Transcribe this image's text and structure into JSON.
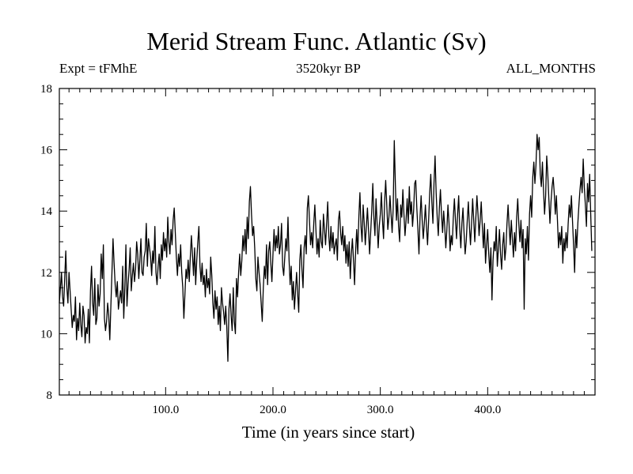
{
  "chart_data": {
    "type": "line",
    "title": "Merid Stream Func. Atlantic (Sv)",
    "subtitle_left": "Expt = tFMhE",
    "subtitle_center": "3520kyr BP",
    "subtitle_right": "ALL_MONTHS",
    "xlabel": "Time (in years since start)",
    "ylabel": "",
    "xlim": [
      1,
      500
    ],
    "ylim": [
      8,
      18
    ],
    "xticks": [
      100,
      200,
      300,
      400
    ],
    "xtick_labels": [
      "100.0",
      "200.0",
      "300.0",
      "400.0"
    ],
    "yticks": [
      8,
      10,
      12,
      14,
      16,
      18
    ],
    "ytick_labels": [
      "8",
      "10",
      "12",
      "14",
      "16",
      "18"
    ],
    "grid": false,
    "series": [
      {
        "name": "Meridional stream function",
        "x_start": 1,
        "x_step": 1,
        "values": [
          11.0,
          11.5,
          12.0,
          11.2,
          10.9,
          11.8,
          12.7,
          11.5,
          11.0,
          12.0,
          11.4,
          10.8,
          10.2,
          10.6,
          10.4,
          11.2,
          9.8,
          10.5,
          10.1,
          11.0,
          10.3,
          9.9,
          10.9,
          10.6,
          9.7,
          10.2,
          10.0,
          10.8,
          9.7,
          11.4,
          12.2,
          11.0,
          10.6,
          11.8,
          10.3,
          10.5,
          11.6,
          10.9,
          11.3,
          12.6,
          11.8,
          12.9,
          10.5,
          10.1,
          10.4,
          11.0,
          10.6,
          9.8,
          10.9,
          12.0,
          13.1,
          12.3,
          11.6,
          11.2,
          11.7,
          10.8,
          11.1,
          11.4,
          11.0,
          12.2,
          10.5,
          11.5,
          12.9,
          10.9,
          11.6,
          12.1,
          12.8,
          11.4,
          11.9,
          12.3,
          11.7,
          12.1,
          13.0,
          12.6,
          11.8,
          12.4,
          13.1,
          12.0,
          11.9,
          12.5,
          12.7,
          13.6,
          12.2,
          13.1,
          12.8,
          12.5,
          11.9,
          12.7,
          12.3,
          13.5,
          12.0,
          11.6,
          12.2,
          12.6,
          11.8,
          12.9,
          12.4,
          13.3,
          12.7,
          13.1,
          12.5,
          13.8,
          13.0,
          12.6,
          13.4,
          12.9,
          13.7,
          14.1,
          13.3,
          12.5,
          11.9,
          12.6,
          12.2,
          12.9,
          12.0,
          11.5,
          10.5,
          11.3,
          12.1,
          11.8,
          12.4,
          11.7,
          12.5,
          13.2,
          12.6,
          11.9,
          12.8,
          11.6,
          12.4,
          13.0,
          13.5,
          12.2,
          11.7,
          12.3,
          11.6,
          11.9,
          11.2,
          12.1,
          11.5,
          11.8,
          11.3,
          12.5,
          11.9,
          11.0,
          10.5,
          11.4,
          10.8,
          11.2,
          10.3,
          10.9,
          10.1,
          11.5,
          11.0,
          10.7,
          10.3,
          10.9,
          10.2,
          9.1,
          10.8,
          11.3,
          10.6,
          10.1,
          11.5,
          10.4,
          10.0,
          11.8,
          11.2,
          12.0,
          12.6,
          11.9,
          12.4,
          13.2,
          12.7,
          13.4,
          12.6,
          13.8,
          13.1,
          14.3,
          14.8,
          13.9,
          13.2,
          13.5,
          12.8,
          11.8,
          11.4,
          12.5,
          12.0,
          11.6,
          11.0,
          10.4,
          11.5,
          12.2,
          11.8,
          12.9,
          11.6,
          12.7,
          13.0,
          12.3,
          11.7,
          12.6,
          13.4,
          12.7,
          13.2,
          12.8,
          13.5,
          12.6,
          12.9,
          13.6,
          12.2,
          11.9,
          12.5,
          13.1,
          12.7,
          13.8,
          12.4,
          11.6,
          12.2,
          11.1,
          11.7,
          10.8,
          11.4,
          12.0,
          11.3,
          10.7,
          12.4,
          12.9,
          12.1,
          11.5,
          12.8,
          13.2,
          12.6,
          14.1,
          14.5,
          13.7,
          12.9,
          13.3,
          12.8,
          13.6,
          14.2,
          13.4,
          12.6,
          13.1,
          12.5,
          13.7,
          13.0,
          12.8,
          13.9,
          13.4,
          12.9,
          13.6,
          14.3,
          13.2,
          12.7,
          13.5,
          12.8,
          13.3,
          12.6,
          12.9,
          13.1,
          12.4,
          13.7,
          14.0,
          13.3,
          12.9,
          13.5,
          12.7,
          13.2,
          12.3,
          12.9,
          12.2,
          13.0,
          11.8,
          12.6,
          13.1,
          12.4,
          11.6,
          12.7,
          13.4,
          12.6,
          13.8,
          14.6,
          13.5,
          13.0,
          14.2,
          13.6,
          12.9,
          13.5,
          14.1,
          13.4,
          12.6,
          13.3,
          14.0,
          14.9,
          13.8,
          13.2,
          14.4,
          13.6,
          12.8,
          13.5,
          13.9,
          14.6,
          13.7,
          13.1,
          14.3,
          15.0,
          14.2,
          13.4,
          13.8,
          14.5,
          13.9,
          13.3,
          14.1,
          16.3,
          14.9,
          13.7,
          14.4,
          13.5,
          13.0,
          14.2,
          13.8,
          14.7,
          13.9,
          13.2,
          13.7,
          14.4,
          13.6,
          14.8,
          13.9,
          14.3,
          13.5,
          14.0,
          14.9,
          15.0,
          14.1,
          13.4,
          12.6,
          13.8,
          14.5,
          13.7,
          13.1,
          13.6,
          14.2,
          13.5,
          12.9,
          13.7,
          14.6,
          15.2,
          14.3,
          13.6,
          14.9,
          15.8,
          14.6,
          13.8,
          13.2,
          14.1,
          14.7,
          13.9,
          13.3,
          14.0,
          13.5,
          12.8,
          13.4,
          14.2,
          13.6,
          12.7,
          13.2,
          12.9,
          13.8,
          14.4,
          13.7,
          13.1,
          13.9,
          14.5,
          13.4,
          12.8,
          13.6,
          14.1,
          13.3,
          12.6,
          13.0,
          13.7,
          14.3,
          13.5,
          12.9,
          13.6,
          14.4,
          13.7,
          13.0,
          13.8,
          14.5,
          13.9,
          13.2,
          13.7,
          14.3,
          13.5,
          12.8,
          13.6,
          12.3,
          12.9,
          13.4,
          12.6,
          12.0,
          12.8,
          11.1,
          12.4,
          13.0,
          12.7,
          13.5,
          12.2,
          12.8,
          13.4,
          12.6,
          12.1,
          12.9,
          13.3,
          12.4,
          12.8,
          13.6,
          14.2,
          13.5,
          12.9,
          13.7,
          13.1,
          12.5,
          13.3,
          12.7,
          13.8,
          14.4,
          13.6,
          13.0,
          13.7,
          12.8,
          13.4,
          10.8,
          13.1,
          12.6,
          13.5,
          12.4,
          13.9,
          14.5,
          13.8,
          15.1,
          15.6,
          14.9,
          15.5,
          16.5,
          16.0,
          16.4,
          15.2,
          14.8,
          15.6,
          14.7,
          13.9,
          14.5,
          15.8,
          15.2,
          14.4,
          13.6,
          14.3,
          14.8,
          15.1,
          14.6,
          13.9,
          14.5,
          13.7,
          12.8,
          13.3,
          12.9,
          13.5,
          12.3,
          13.1,
          12.7,
          13.3,
          12.8,
          13.6,
          14.2,
          13.8,
          14.5,
          13.7,
          12.9,
          12.0,
          13.4,
          12.8,
          13.6,
          14.2,
          14.7,
          15.1,
          14.6,
          15.7,
          14.8,
          14.2,
          13.5,
          14.9,
          14.3,
          15.2,
          13.9,
          12.7
        ]
      }
    ]
  }
}
